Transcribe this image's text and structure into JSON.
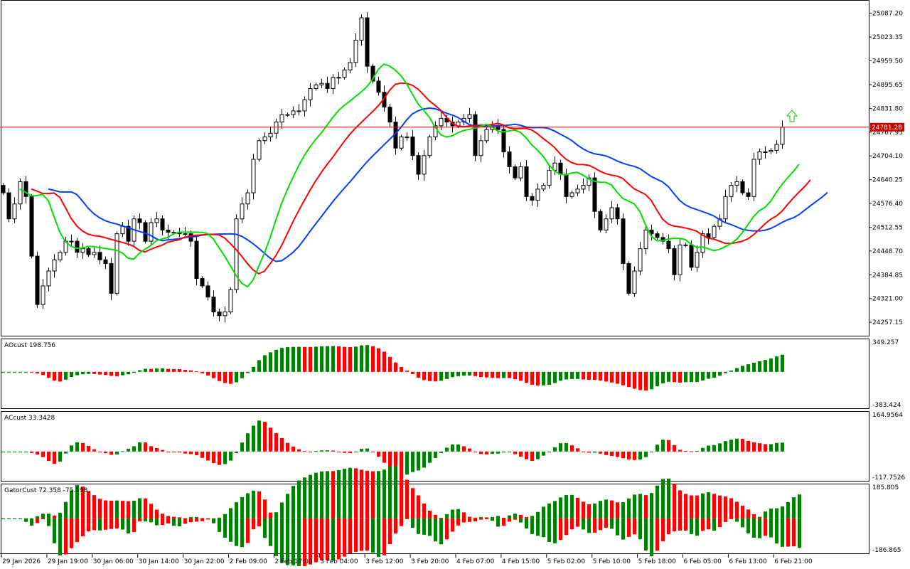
{
  "chart_data": {
    "type": "candlestick",
    "symbol_price_label": "24781.28",
    "current_price": 24781.28,
    "colors": {
      "bull_body": "#ffffff",
      "bear_body": "#000000",
      "lips": "#00e000",
      "teeth": "#ff0000",
      "jaw": "#0040ff",
      "price_line": "#e00000",
      "up": "#008000",
      "down": "#ff0000",
      "signal_arrow": "#33cc33"
    },
    "price_axis": {
      "ylim": [
        24225.0,
        25119.0
      ],
      "ticks": [
        "25087.20",
        "25023.35",
        "24959.50",
        "24895.65",
        "24831.80",
        "24767.95",
        "24704.10",
        "24640.25",
        "24576.40",
        "24512.55",
        "24448.70",
        "24384.85",
        "24321.00",
        "24257.15"
      ]
    },
    "time_axis": {
      "ticks": [
        "29 Jan 2026",
        "29 Jan 19:00",
        "30 Jan 06:00",
        "30 Jan 14:00",
        "30 Jan 22:00",
        "2 Feb 09:00",
        "2 Feb 17:00",
        "3 Feb 04:00",
        "3 Feb 12:00",
        "3 Feb 20:00",
        "4 Feb 07:00",
        "4 Feb 15:00",
        "5 Feb 02:00",
        "5 Feb 10:00",
        "5 Feb 18:00",
        "6 Feb 05:00",
        "6 Feb 13:00",
        "6 Feb 21:00"
      ]
    },
    "closes": [
      24605,
      24535,
      24575,
      24635,
      24595,
      24435,
      24305,
      24355,
      24395,
      24425,
      24445,
      24475,
      24475,
      24445,
      24455,
      24439,
      24445,
      24425,
      24415,
      24335,
      24495,
      24515,
      24475,
      24535,
      24525,
      24475,
      24525,
      24535,
      24505,
      24499,
      24499,
      24495,
      24495,
      24475,
      24375,
      24355,
      24325,
      24285,
      24275,
      24285,
      24345,
      24535,
      24575,
      24605,
      24695,
      24745,
      24755,
      24765,
      24795,
      24815,
      24815,
      24825,
      24825,
      24855,
      24885,
      24895,
      24899,
      24885,
      24915,
      24915,
      24935,
      24955,
      25015,
      25075,
      24945,
      24905,
      24875,
      24835,
      24795,
      24725,
      24755,
      24755,
      24705,
      24655,
      24705,
      24755,
      24785,
      24805,
      24795,
      24785,
      24795,
      24805,
      24815,
      24705,
      24745,
      24775,
      24785,
      24775,
      24715,
      24675,
      24645,
      24675,
      24595,
      24585,
      24615,
      24625,
      24665,
      24685,
      24655,
      24595,
      24605,
      24615,
      24625,
      24645,
      24555,
      24505,
      24535,
      24565,
      24535,
      24415,
      24335,
      24395,
      24455,
      24505,
      24495,
      24485,
      24475,
      24455,
      24385,
      24465,
      24465,
      24405,
      24445,
      24495,
      24485,
      24515,
      24535,
      24595,
      24625,
      24635,
      24605,
      24595,
      24695,
      24715,
      24715,
      24719,
      24735,
      24781
    ],
    "indicators": [
      {
        "label": "AOcust 198.756",
        "type": "histogram",
        "ylim": [
          -383.424,
          349.257
        ],
        "max_label": "349.257",
        "min_label": "-383.424"
      },
      {
        "label": "ACcust 33.3428",
        "type": "histogram",
        "ylim": [
          -117.7526,
          164.9564
        ],
        "max_label": "164.9564",
        "min_label": "-117.7526"
      },
      {
        "label": "GatorCust 72.358 -75.198",
        "type": "histogram",
        "ylim": [
          -186.865,
          185.805
        ],
        "max_label": "185.805",
        "min_label": "-186.865"
      }
    ]
  }
}
